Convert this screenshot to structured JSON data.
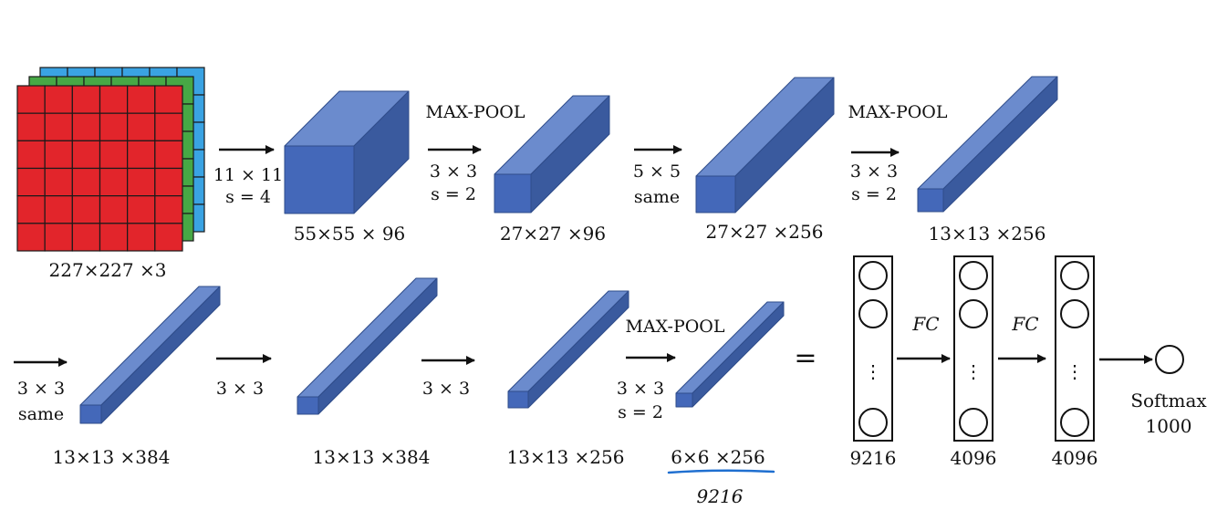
{
  "colors": {
    "red": "#e2252b",
    "green": "#47a845",
    "blue": "#3aa3e3",
    "block_front": "#4468b9",
    "block_top": "#6b8bcd",
    "block_side": "#3a5a9e",
    "handwriting": "#1f6fd0"
  },
  "input": {
    "label": "227×227 ×3",
    "grid_rows": 6,
    "grid_cols": 6
  },
  "row1": {
    "conv1_kernel": "11 × 11",
    "conv1_stride": "s = 4",
    "vol1_label": "55×55 × 96",
    "pool1_title": "MAX-POOL",
    "pool1_kernel": "3 × 3",
    "pool1_stride": "s = 2",
    "vol2_label": "27×27 ×96",
    "conv2_kernel": "5 × 5",
    "conv2_pad": "same",
    "vol3_label": "27×27 ×256",
    "pool2_title": "MAX-POOL",
    "pool2_kernel": "3 × 3",
    "pool2_stride": "s = 2",
    "vol4_label": "13×13 ×256"
  },
  "row2": {
    "conv3_kernel": "3 × 3",
    "conv3_pad": "same",
    "vol5_label": "13×13 ×384",
    "conv4_kernel": "3 × 3",
    "vol6_label": "13×13 ×384",
    "conv5_kernel": "3 × 3",
    "vol7_label": "13×13 ×256",
    "pool3_title": "MAX-POOL",
    "pool3_kernel": "3 × 3",
    "pool3_stride": "s = 2",
    "vol8_label": "6×6 ×256",
    "handwritten_flatten": "9216",
    "equals": "="
  },
  "fc": {
    "layer1_label": "9216",
    "layer2_label": "4096",
    "layer3_label": "4096",
    "dots": "⋮",
    "handwritten_fc1": "FC",
    "handwritten_fc2": "FC",
    "softmax_title": "Softmax",
    "softmax_size": "1000"
  }
}
